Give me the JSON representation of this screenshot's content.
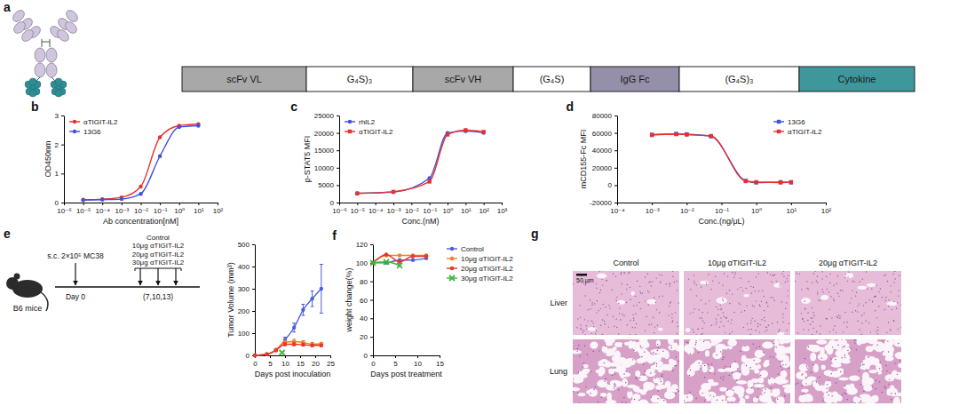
{
  "panel_labels": [
    "a",
    "b",
    "c",
    "d",
    "e",
    "f",
    "g"
  ],
  "panel_a": {
    "construct": [
      {
        "label": "scFv VL",
        "color": "#a8a8a8"
      },
      {
        "label": "G₄S)₃",
        "color": "#ffffff"
      },
      {
        "label": "scFv VH",
        "color": "#a8a8a8"
      },
      {
        "label": "(G₄S)",
        "color": "#ffffff"
      },
      {
        "label": "IgG Fc",
        "color": "#958fa9"
      },
      {
        "label": "(G₄S)₃",
        "color": "#ffffff"
      },
      {
        "label": "Cytokine",
        "color": "#3d979b"
      }
    ]
  },
  "panel_e_schematic": {
    "mouse_label": "B6 mice",
    "injection": "s.c. 2×10⁵ MC38",
    "day0": "Day 0",
    "groups": [
      "Control",
      "10μg αTIGIT-IL2",
      "20μg αTIGIT-IL2",
      "30μg αTIGIT-IL2"
    ],
    "schedule": "(7,10,13)"
  },
  "panel_g": {
    "columns": [
      "Control",
      "10μg αTIGIT-IL2",
      "20μg αTIGIT-IL2"
    ],
    "rows": [
      "Liver",
      "Lung"
    ],
    "scale_bar": "50 μm"
  },
  "chart_data": [
    {
      "type": "line",
      "xlabel": "Ab concentration[nM]",
      "ylabel": "OD450nm",
      "log": "x",
      "x": [
        1e-05,
        0.0001,
        0.001,
        0.01,
        0.1,
        1,
        10
      ],
      "xlim": [
        1e-06,
        100
      ],
      "xticks": [
        {
          "value": 1e-06,
          "label": "10⁻⁶"
        },
        {
          "value": 1e-05,
          "label": "10⁻⁵"
        },
        {
          "value": 0.0001,
          "label": "10⁻⁴"
        },
        {
          "value": 0.001,
          "label": "10⁻³"
        },
        {
          "value": 0.01,
          "label": "10⁻²"
        },
        {
          "value": 0.1,
          "label": "10⁻¹"
        },
        {
          "value": 1,
          "label": "10⁰"
        },
        {
          "value": 10,
          "label": "10¹"
        },
        {
          "value": 100,
          "label": "10²"
        }
      ],
      "ylim": [
        0,
        3
      ],
      "yticks": [
        0,
        1,
        2,
        3
      ],
      "legend": "top-left",
      "series": [
        {
          "name": "αTIGIT-IL2",
          "color": "#e8302c",
          "marker": "circle",
          "values": [
            0.1,
            0.12,
            0.18,
            0.55,
            2.25,
            2.65,
            2.7
          ]
        },
        {
          "name": "13G6",
          "color": "#4050e0",
          "marker": "circle",
          "values": [
            0.08,
            0.1,
            0.12,
            0.3,
            1.6,
            2.6,
            2.65
          ]
        }
      ]
    },
    {
      "type": "line",
      "xlabel": "Conc.(nM)",
      "ylabel": "p-STAT5 MFI",
      "log": "x",
      "x": [
        1e-05,
        0.001,
        0.1,
        1,
        10,
        100
      ],
      "xlim": [
        1e-06,
        1000
      ],
      "xticks": [
        {
          "value": 1e-06,
          "label": "10⁻⁶"
        },
        {
          "value": 1e-05,
          "label": "10⁻⁵"
        },
        {
          "value": 0.0001,
          "label": "10⁻⁴"
        },
        {
          "value": 0.001,
          "label": "10⁻³"
        },
        {
          "value": 0.01,
          "label": "10⁻²"
        },
        {
          "value": 0.1,
          "label": "10⁻¹"
        },
        {
          "value": 1,
          "label": "10⁰"
        },
        {
          "value": 10,
          "label": "10¹"
        },
        {
          "value": 100,
          "label": "10²"
        },
        {
          "value": 1000,
          "label": "10³"
        }
      ],
      "ylim": [
        0,
        25000
      ],
      "yticks": [
        0,
        5000,
        10000,
        15000,
        20000,
        25000
      ],
      "legend": "top-left",
      "series": [
        {
          "name": "rhIL2",
          "color": "#4050e0",
          "marker": "circle",
          "values": [
            2700,
            3000,
            7000,
            20000,
            20500,
            20000
          ]
        },
        {
          "name": "αTIGIT-IL2",
          "color": "#e8302c",
          "marker": "square",
          "values": [
            2600,
            3100,
            6000,
            19500,
            20800,
            20300
          ]
        }
      ]
    },
    {
      "type": "line",
      "xlabel": "Conc.(ng/μL)",
      "ylabel": "mCD155-Fc MFI",
      "log": "x",
      "x": [
        0.001,
        0.005,
        0.01,
        0.05,
        0.5,
        1,
        5,
        10
      ],
      "xlim": [
        0.0001,
        100
      ],
      "xticks": [
        {
          "value": 0.0001,
          "label": "10⁻⁴"
        },
        {
          "value": 0.001,
          "label": "10⁻³"
        },
        {
          "value": 0.01,
          "label": "10⁻²"
        },
        {
          "value": 0.1,
          "label": "10⁻¹"
        },
        {
          "value": 1,
          "label": "10⁰"
        },
        {
          "value": 10,
          "label": "10¹"
        },
        {
          "value": 100,
          "label": "10²"
        }
      ],
      "ylim": [
        -20000,
        80000
      ],
      "yticks": [
        -20000,
        0,
        20000,
        40000,
        60000,
        80000
      ],
      "legend": "top-right",
      "series": [
        {
          "name": "13G6",
          "color": "#4050e0",
          "marker": "square",
          "values": [
            58000,
            59000,
            58500,
            56000,
            5000,
            3000,
            3500,
            3000
          ]
        },
        {
          "name": "αTIGIT-IL2",
          "color": "#e8302c",
          "marker": "square",
          "values": [
            57500,
            58500,
            58000,
            56500,
            4500,
            3500,
            3000,
            3500
          ]
        }
      ]
    },
    {
      "type": "line",
      "xlabel": "Days post inoculation",
      "ylabel": "Tumor Volume (mm³)",
      "xlim": [
        0,
        25
      ],
      "xticks": [
        0,
        5,
        10,
        15,
        20,
        25
      ],
      "ylim": [
        0,
        500
      ],
      "yticks": [
        0,
        100,
        200,
        300,
        400,
        500
      ],
      "series": [
        {
          "name": "Control",
          "color": "#4a5fe0",
          "marker": "circle",
          "x": [
            0,
            4,
            7,
            10,
            13,
            16,
            19,
            22
          ],
          "values": [
            0,
            5,
            25,
            70,
            125,
            205,
            255,
            300
          ],
          "errors": [
            0,
            2,
            5,
            12,
            20,
            25,
            35,
            110
          ]
        },
        {
          "name": "10μg αTIGIT-IL2",
          "color": "#f57c28",
          "marker": "circle",
          "x": [
            0,
            4,
            7,
            10,
            13,
            16,
            19,
            22
          ],
          "values": [
            0,
            5,
            25,
            60,
            62,
            58,
            50,
            52
          ],
          "errors": [
            0,
            2,
            5,
            8,
            10,
            8,
            8,
            6
          ]
        },
        {
          "name": "20μg αTIGIT-IL2",
          "color": "#e8362a",
          "marker": "circle",
          "x": [
            0,
            4,
            7,
            10,
            13,
            16,
            19,
            22
          ],
          "values": [
            0,
            5,
            22,
            50,
            50,
            48,
            45,
            45
          ],
          "errors": [
            0,
            2,
            4,
            6,
            6,
            6,
            5,
            5
          ]
        },
        {
          "name": "30μg αTIGIT-IL2",
          "color": "#3cb33c",
          "marker": "x",
          "x": [
            9
          ],
          "values": [
            12
          ]
        }
      ]
    },
    {
      "type": "line",
      "xlabel": "Days post treatment",
      "ylabel": "weight change(%)",
      "xlim": [
        0,
        15
      ],
      "xticks": [
        0,
        5,
        10,
        15
      ],
      "ylim": [
        0,
        120
      ],
      "yticks": [
        0,
        20,
        40,
        60,
        80,
        100,
        120
      ],
      "legend": "right",
      "series": [
        {
          "name": "Control",
          "color": "#4a5fe0",
          "marker": "circle",
          "x": [
            0,
            3,
            6,
            9,
            12
          ],
          "values": [
            100,
            100,
            103,
            103,
            105
          ]
        },
        {
          "name": "10μg αTIGIT-IL2",
          "color": "#f57c28",
          "marker": "circle",
          "x": [
            0,
            3,
            6,
            9,
            12
          ],
          "values": [
            100,
            108,
            108,
            108,
            108
          ]
        },
        {
          "name": "20μg αTIGIT-IL2",
          "color": "#e8362a",
          "marker": "circle",
          "x": [
            0,
            3,
            6,
            9,
            12
          ],
          "values": [
            100,
            109,
            101,
            107,
            107
          ]
        },
        {
          "name": "30μg αTIGIT-IL2",
          "color": "#3cb33c",
          "marker": "x",
          "x": [
            0,
            3,
            6
          ],
          "values": [
            100,
            101,
            97
          ]
        }
      ]
    }
  ]
}
